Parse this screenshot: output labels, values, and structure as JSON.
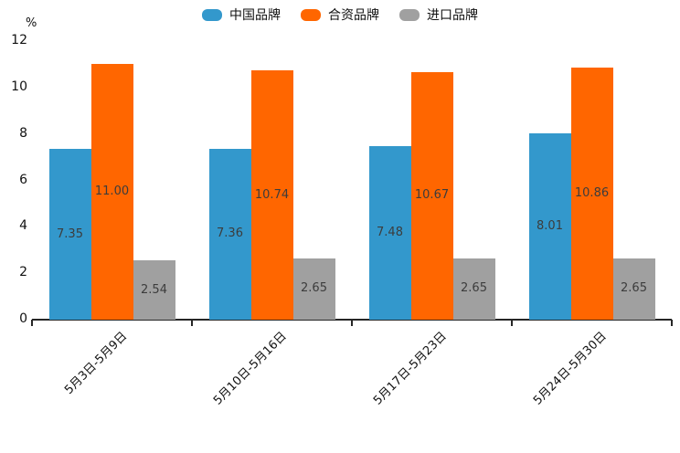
{
  "chart_data": {
    "type": "bar",
    "title": "",
    "ylabel": "%",
    "xlabel": "",
    "grid": false,
    "legend_position": "top",
    "ylim": [
      0,
      12
    ],
    "y_ticks": [
      "0",
      "2",
      "4",
      "6",
      "8",
      "10",
      "12"
    ],
    "categories": [
      "5月3日-5月9日",
      "5月10日-5月16日",
      "5月17日-5月23日",
      "5月24日-5月30日"
    ],
    "series": [
      {
        "name": "中国品牌",
        "color": "#3398cc",
        "values": [
          7.35,
          7.36,
          7.48,
          8.01
        ],
        "labels": [
          "7.35",
          "7.36",
          "7.48",
          "8.01"
        ]
      },
      {
        "name": "合资品牌",
        "color": "#ff6600",
        "values": [
          11.0,
          10.74,
          10.67,
          10.86
        ],
        "labels": [
          "11.00",
          "10.74",
          "10.67",
          "10.86"
        ]
      },
      {
        "name": "进口品牌",
        "color": "#a0a0a0",
        "values": [
          2.54,
          2.65,
          2.65,
          2.65
        ],
        "labels": [
          "2.54",
          "2.65",
          "2.65",
          "2.65"
        ]
      }
    ],
    "value_label_color": "#3c3c3c",
    "axis_color": "#262626"
  }
}
